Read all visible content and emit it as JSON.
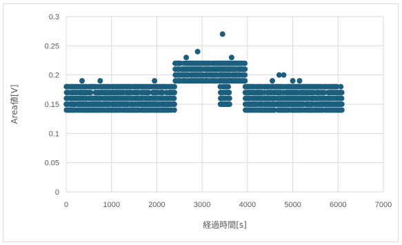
{
  "chart_data": {
    "type": "scatter",
    "title": "",
    "xlabel": "経過時間[s]",
    "ylabel": "Area値[V]",
    "xlim": [
      0,
      7000
    ],
    "ylim": [
      0,
      0.3
    ],
    "x_ticks": [
      0,
      1000,
      2000,
      3000,
      4000,
      5000,
      6000,
      7000
    ],
    "y_ticks": [
      0,
      0.05,
      0.1,
      0.15,
      0.2,
      0.25,
      0.3
    ],
    "grid": true,
    "legend": "none",
    "marker_color": "#1b5e7e",
    "series": [
      {
        "description_free": true,
        "segments": [
          {
            "x_range": [
              0,
              2400
            ],
            "y_values": [
              0.14,
              0.15,
              0.16,
              0.17,
              0.18
            ]
          },
          {
            "x_range": [
              2400,
              3400
            ],
            "y_values": [
              0.19,
              0.2,
              0.21,
              0.22
            ]
          },
          {
            "x_range": [
              3400,
              3600
            ],
            "y_values": [
              0.15,
              0.16,
              0.17,
              0.18,
              0.19,
              0.2,
              0.21,
              0.22
            ]
          },
          {
            "x_range": [
              3600,
              3950
            ],
            "y_values": [
              0.19,
              0.2,
              0.21,
              0.22
            ]
          },
          {
            "x_range": [
              3950,
              6100
            ],
            "y_values": [
              0.14,
              0.15,
              0.16,
              0.17,
              0.18
            ]
          }
        ],
        "outliers": [
          {
            "x": 350,
            "y": 0.19
          },
          {
            "x": 750,
            "y": 0.19
          },
          {
            "x": 1950,
            "y": 0.19
          },
          {
            "x": 2900,
            "y": 0.24
          },
          {
            "x": 2650,
            "y": 0.23
          },
          {
            "x": 3450,
            "y": 0.27
          },
          {
            "x": 3650,
            "y": 0.23
          },
          {
            "x": 4700,
            "y": 0.2
          },
          {
            "x": 4800,
            "y": 0.2
          },
          {
            "x": 4550,
            "y": 0.19
          },
          {
            "x": 5000,
            "y": 0.19
          },
          {
            "x": 5150,
            "y": 0.19
          }
        ]
      }
    ]
  }
}
